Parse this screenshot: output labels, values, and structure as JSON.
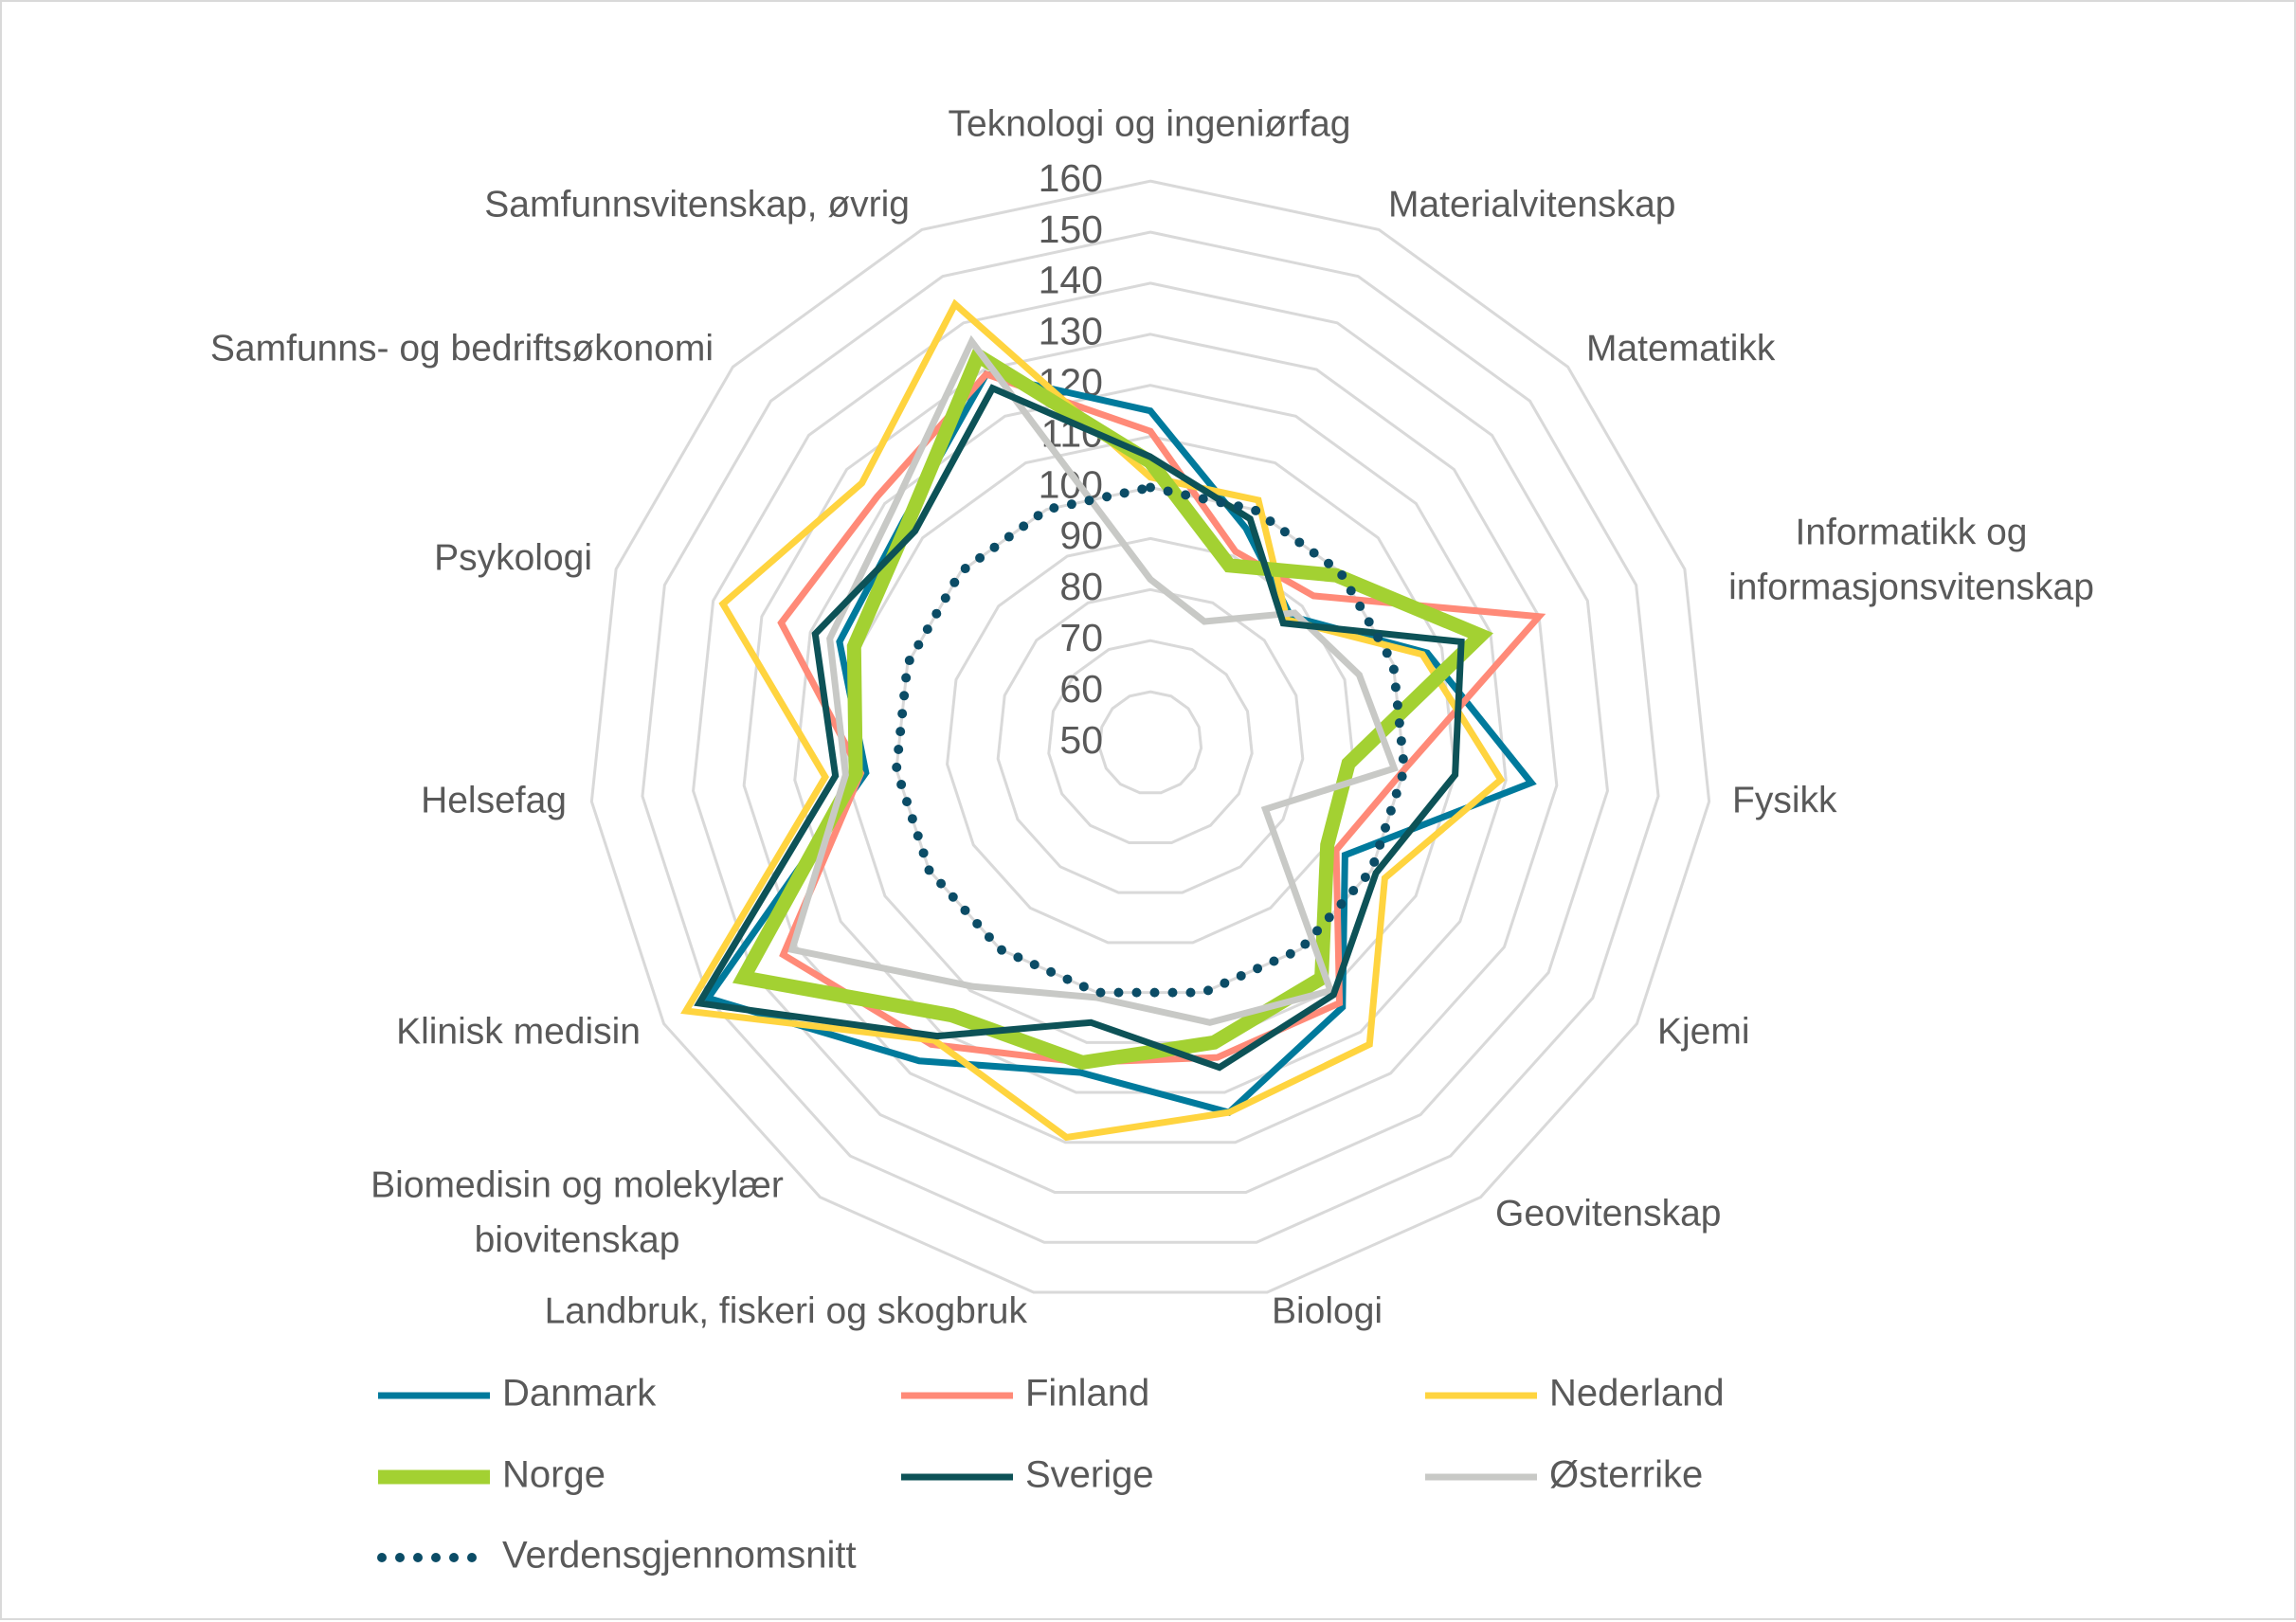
{
  "chart_data": {
    "type": "radar",
    "title": "",
    "categories": [
      [
        "Teknologi og ingeniørfag"
      ],
      [
        "Materialvitenskap"
      ],
      [
        "Matematikk"
      ],
      [
        "Informatikk og",
        "informasjonsvitenskap"
      ],
      [
        "Fysikk"
      ],
      [
        "Kjemi"
      ],
      [
        "Geovitenskap"
      ],
      [
        "Biologi"
      ],
      [
        "Landbruk, fiskeri og skogbruk"
      ],
      [
        "Biomedisin og molekylær",
        "biovitenskap"
      ],
      [
        "Klinisk medisin"
      ],
      [
        "Helsefag"
      ],
      [
        "Psykologi"
      ],
      [
        "Samfunns- og bedriftsøkonomi"
      ],
      [
        "Samfunnsvitenskap, øvrig"
      ]
    ],
    "radial_axis": {
      "min": 50,
      "max": 160,
      "step": 10,
      "ticks": [
        "50",
        "60",
        "70",
        "80",
        "90",
        "100",
        "110",
        "120",
        "130",
        "140",
        "150",
        "160"
      ]
    },
    "grid": true,
    "legend_position": "bottom",
    "series": [
      {
        "name": "Danmark",
        "color": "#007A9C",
        "style": "solid",
        "values": [
          115,
          96,
          87,
          107,
          125,
          94,
          114,
          124,
          116,
          127,
          150,
          106,
          114,
          115,
          129
        ]
      },
      {
        "name": "Finland",
        "color": "#FF8A78",
        "style": "solid",
        "values": [
          111,
          91,
          93,
          130,
          100,
          92,
          113,
          113,
          114,
          123,
          133,
          107,
          126,
          122,
          129
        ]
      },
      {
        "name": "Nederland",
        "color": "#FFD43F",
        "style": "solid",
        "values": [
          102,
          102,
          86,
          106,
          119,
          103,
          123,
          124,
          129,
          122,
          155,
          114,
          138,
          126,
          144
        ]
      },
      {
        "name": "Norge",
        "color": "#A3D132",
        "style": "thick",
        "values": [
          105,
          88,
          99,
          118,
          89,
          90,
          107,
          110,
          114,
          116,
          142,
          108,
          111,
          114,
          133
        ]
      },
      {
        "name": "Sverige",
        "color": "#0D5257",
        "style": "solid",
        "values": [
          106,
          98,
          85,
          114,
          110,
          101,
          111,
          115,
          106,
          121,
          152,
          112,
          119,
          112,
          126
        ]
      },
      {
        "name": "Østerrike",
        "color": "#C8C9C6",
        "style": "solid",
        "values": [
          82,
          76,
          88,
          93,
          98,
          76,
          110,
          106,
          101,
          109,
          131,
          110,
          116,
          118,
          136
        ]
      },
      {
        "name": "Verdensgjennomsnitt",
        "color": "#0B4C66",
        "style": "dotted",
        "values": [
          100,
          100,
          100,
          100,
          100,
          100,
          100,
          100,
          100,
          100,
          100,
          100,
          100,
          100,
          100
        ]
      }
    ]
  }
}
